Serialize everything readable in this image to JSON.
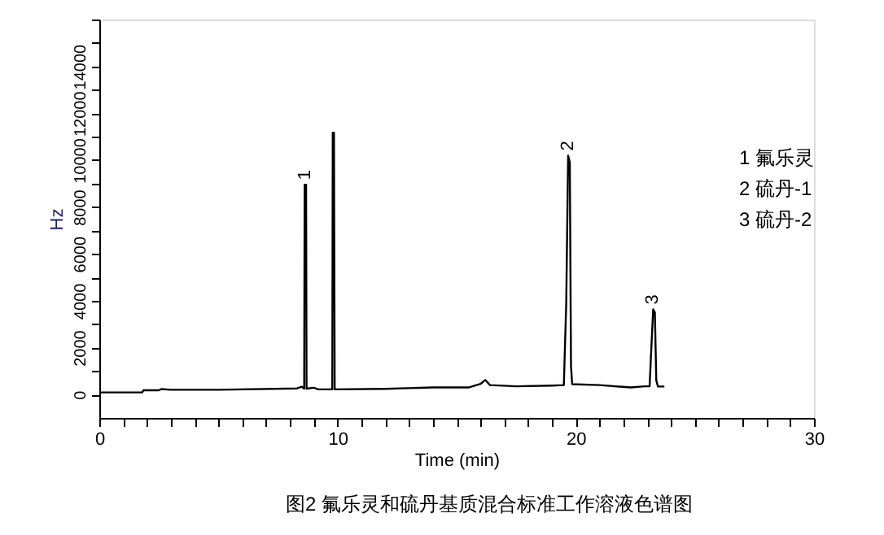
{
  "chart_data": {
    "type": "line",
    "xlabel": "Time (min)",
    "ylabel": "Hz",
    "x": [
      0,
      1.8,
      1.85,
      2.5,
      2.6,
      3.0,
      5,
      8.3,
      8.5,
      8.6,
      8.62,
      8.68,
      8.7,
      9.0,
      9.2,
      9.78,
      9.8,
      9.85,
      9.88,
      12,
      14,
      15.5,
      16.0,
      16.2,
      16.4,
      17.5,
      19.0,
      19.5,
      19.6,
      19.68,
      19.75,
      19.8,
      19.85,
      21,
      22.3,
      22.9,
      23.1,
      23.15,
      23.25,
      23.32,
      23.38,
      23.45,
      23.72
    ],
    "series": [
      {
        "color": "#000000",
        "values": [
          90,
          90,
          180,
          180,
          230,
          200,
          200,
          260,
          330,
          250,
          8950,
          8950,
          250,
          290,
          220,
          220,
          11170,
          11170,
          220,
          240,
          300,
          300,
          450,
          620,
          400,
          350,
          380,
          400,
          3900,
          10190,
          9900,
          1200,
          440,
          400,
          300,
          350,
          350,
          1500,
          3630,
          3500,
          600,
          340,
          340
        ]
      }
    ],
    "xlim": [
      0,
      30
    ],
    "ylim": [
      -1000,
      16000
    ],
    "xticks": [
      0,
      {
        "value": 1,
        "label": null
      },
      {
        "value": 2,
        "label": null
      },
      {
        "value": 3,
        "label": null
      },
      {
        "value": 4,
        "label": null
      },
      {
        "value": 5,
        "label": null
      },
      {
        "value": 6,
        "label": null
      },
      {
        "value": 7,
        "label": null
      },
      {
        "value": 8,
        "label": null
      },
      {
        "value": 9,
        "label": null
      },
      10,
      {
        "value": 11,
        "label": null
      },
      {
        "value": 12,
        "label": null
      },
      {
        "value": 13,
        "label": null
      },
      {
        "value": 14,
        "label": null
      },
      {
        "value": 15,
        "label": null
      },
      {
        "value": 16,
        "label": null
      },
      {
        "value": 17,
        "label": null
      },
      {
        "value": 18,
        "label": null
      },
      {
        "value": 19,
        "label": null
      },
      20,
      {
        "value": 21,
        "label": null
      },
      {
        "value": 22,
        "label": null
      },
      {
        "value": 23,
        "label": null
      },
      {
        "value": 24,
        "label": null
      },
      {
        "value": 25,
        "label": null
      },
      {
        "value": 26,
        "label": null
      },
      {
        "value": 27,
        "label": null
      },
      {
        "value": 28,
        "label": null
      },
      {
        "value": 29,
        "label": null
      },
      30
    ],
    "yticks": [
      0,
      {
        "value": 1000,
        "label": null
      },
      2000,
      {
        "value": 3000,
        "label": null
      },
      4000,
      {
        "value": 5000,
        "label": null
      },
      6000,
      {
        "value": 7000,
        "label": null
      },
      8000,
      {
        "value": 9000,
        "label": null
      },
      10000,
      {
        "value": 11000,
        "label": null
      },
      12000,
      {
        "value": 13000,
        "label": null
      },
      14000,
      {
        "value": 15000,
        "label": null
      },
      {
        "value": 16000,
        "label": null
      }
    ],
    "grid": false,
    "marker": "none",
    "line_style": "solid",
    "annotations": [
      {
        "text": "1",
        "x": 8.65,
        "y": 8950
      },
      {
        "text": "2",
        "x": 19.68,
        "y": 10190
      },
      {
        "text": "3",
        "x": 23.25,
        "y": 3630
      },
      "1  氟乐灵",
      "2  硫丹-1",
      "3  硫丹-2",
      "图2  氟乐灵和硫丹基质混合标准工作溶液色谱图"
    ]
  }
}
